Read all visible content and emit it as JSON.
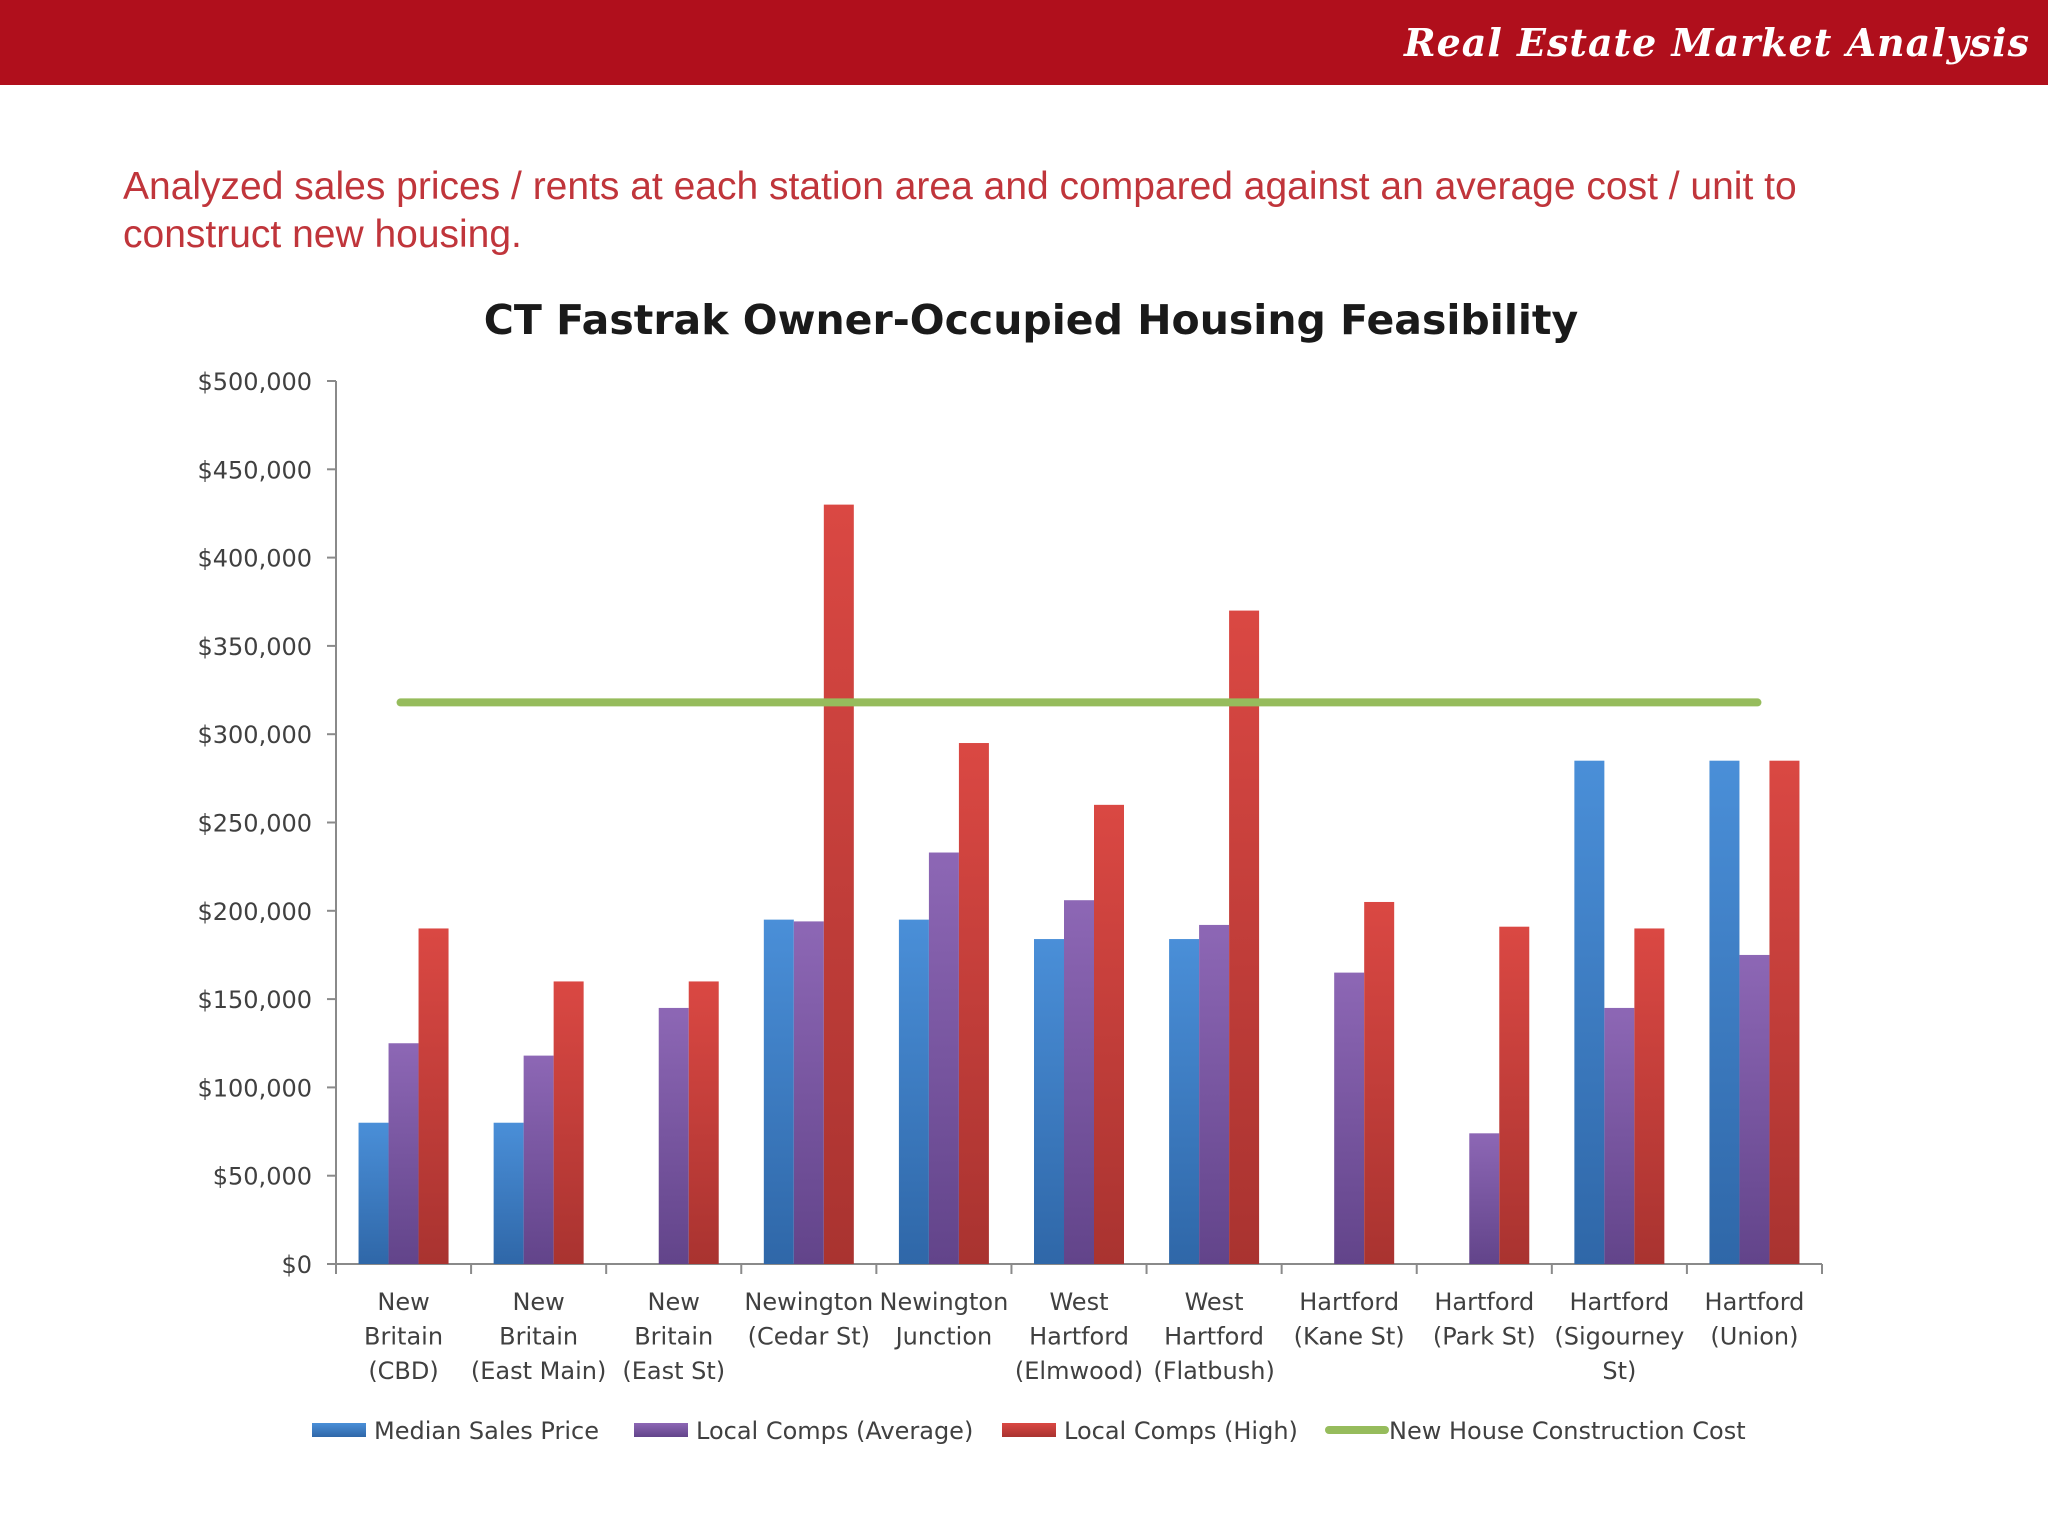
{
  "header": {
    "brand": "Real Estate Market Analysis",
    "subtitle": "Analyzed sales prices / rents at each station area and compared against an average cost / unit to construct new housing."
  },
  "colors": {
    "topbar": "#b00f1c",
    "subtitle": "#c0353b",
    "median": "#3a7fcc",
    "average": "#7e59a6",
    "high": "#cf3a36",
    "construction": "#96bc5c"
  },
  "chart_data": {
    "type": "bar",
    "title": "CT Fastrak Owner-Occupied Housing Feasibility",
    "xlabel": "",
    "ylabel": "",
    "ylim": [
      0,
      500000
    ],
    "y_ticks": [
      "$0",
      "$50,000",
      "$100,000",
      "$150,000",
      "$200,000",
      "$250,000",
      "$300,000",
      "$350,000",
      "$400,000",
      "$450,000",
      "$500,000"
    ],
    "categories": [
      [
        "New",
        "Britain",
        "(CBD)"
      ],
      [
        "New",
        "Britain",
        "(East Main)"
      ],
      [
        "New",
        "Britain",
        "(East St)"
      ],
      [
        "Newington",
        "(Cedar St)"
      ],
      [
        "Newington",
        "Junction"
      ],
      [
        "West",
        "Hartford",
        "(Elmwood)"
      ],
      [
        "West",
        "Hartford",
        "(Flatbush)"
      ],
      [
        "Hartford",
        "(Kane St)"
      ],
      [
        "Hartford",
        "(Park St)"
      ],
      [
        "Hartford",
        "(Sigourney",
        "St)"
      ],
      [
        "Hartford",
        "(Union)"
      ]
    ],
    "series": [
      {
        "name": "Median Sales Price",
        "color": "#3a7fcc",
        "values": [
          80000,
          80000,
          null,
          195000,
          195000,
          184000,
          184000,
          null,
          null,
          285000,
          285000
        ]
      },
      {
        "name": "Local Comps (Average)",
        "color": "#7e59a6",
        "values": [
          125000,
          118000,
          145000,
          194000,
          233000,
          206000,
          192000,
          165000,
          74000,
          145000,
          175000
        ]
      },
      {
        "name": "Local Comps (High)",
        "color": "#cf3a36",
        "values": [
          190000,
          160000,
          160000,
          430000,
          295000,
          260000,
          370000,
          205000,
          191000,
          190000,
          285000
        ]
      }
    ],
    "lines": [
      {
        "name": "New House Construction Cost",
        "color": "#96bc5c",
        "value": 318000
      }
    ],
    "legend_position": "bottom",
    "grid": false
  }
}
